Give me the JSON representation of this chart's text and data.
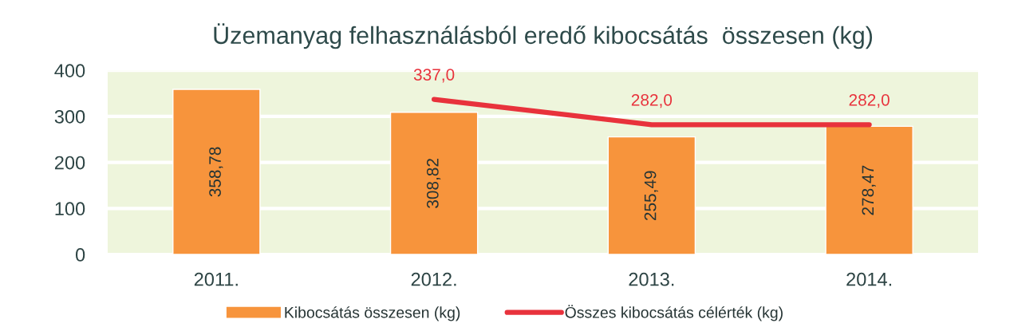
{
  "chart_data": {
    "type": "bar",
    "title": "Üzemanyag felhasználásból eredő kibocsátás  összesen (kg)",
    "categories": [
      "2011.",
      "2012.",
      "2013.",
      "2014."
    ],
    "series": [
      {
        "name": "Kibocsátás összesen (kg)",
        "color": "#f7943c",
        "values": [
          358.78,
          308.82,
          255.49,
          278.47
        ],
        "value_labels": [
          "358,78",
          "308,82",
          "255,49",
          "278,47"
        ]
      },
      {
        "name": "Összes kibocsátás célérték (kg)",
        "type": "line",
        "color": "#e8323c",
        "values": [
          null,
          337.0,
          282.0,
          282.0
        ],
        "value_labels": [
          null,
          "337,0",
          "282,0",
          "282,0"
        ]
      }
    ],
    "ylim": [
      0,
      400
    ],
    "yticks": [
      0,
      100,
      200,
      300,
      400
    ],
    "grid": "y",
    "legend": "bottom"
  }
}
